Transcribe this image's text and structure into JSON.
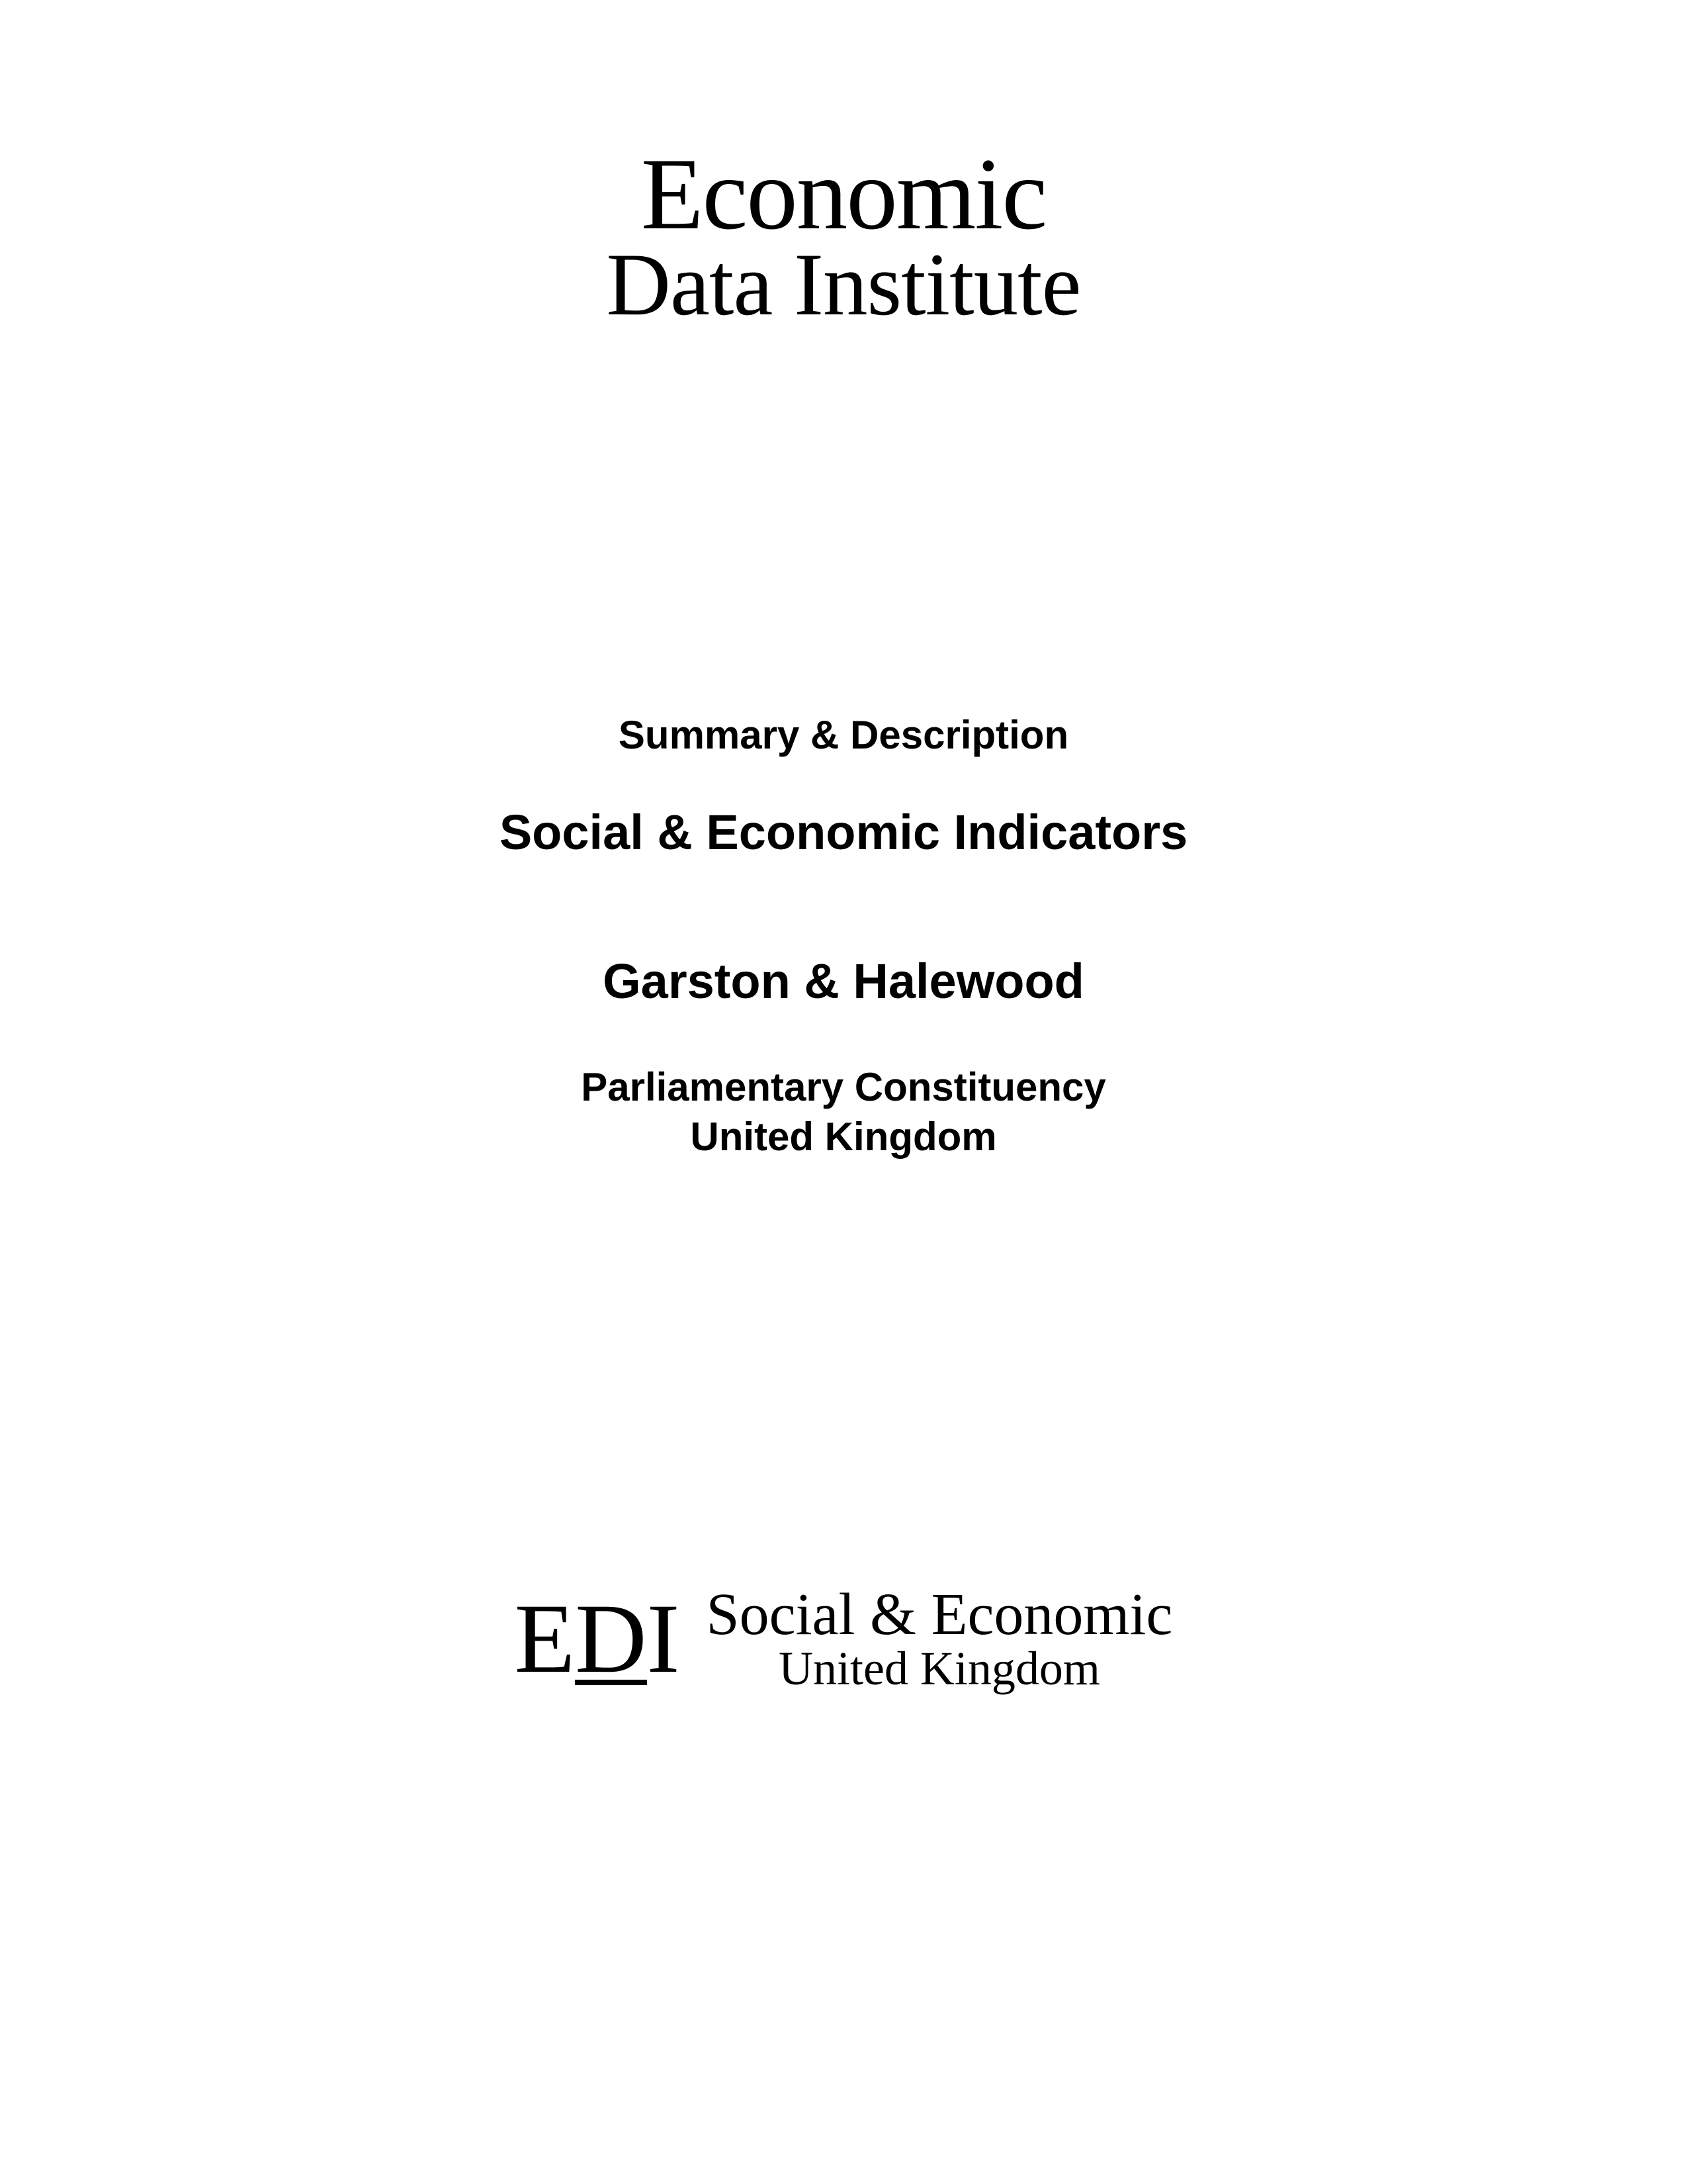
{
  "topLogo": {
    "line1": "Economic",
    "line2": "Data Institute"
  },
  "content": {
    "summary": "Summary & Description",
    "title": "Social & Economic Indicators",
    "location": "Garston & Halewood",
    "subtitle1": "Parliamentary Constituency",
    "subtitle2": "United Kingdom"
  },
  "bottomLogo": {
    "mark": {
      "e": "E",
      "d": "D",
      "i": "I"
    },
    "line1": "Social & Economic",
    "line2": "United Kingdom"
  },
  "styling": {
    "pageWidth": 2550,
    "pageHeight": 3300,
    "backgroundColor": "#ffffff",
    "textColor": "#000000",
    "topLogoFontSize1": 155,
    "topLogoFontSize2": 135,
    "summaryFontSize": 60,
    "titleFontSize": 74,
    "subtitleFontSize": 60,
    "ediMarkFontSize": 150,
    "bottomLine1FontSize": 90,
    "bottomLine2FontSize": 72,
    "serifFont": "Georgia, Times New Roman, serif",
    "sansFont": "Arial, Helvetica, sans-serif"
  }
}
